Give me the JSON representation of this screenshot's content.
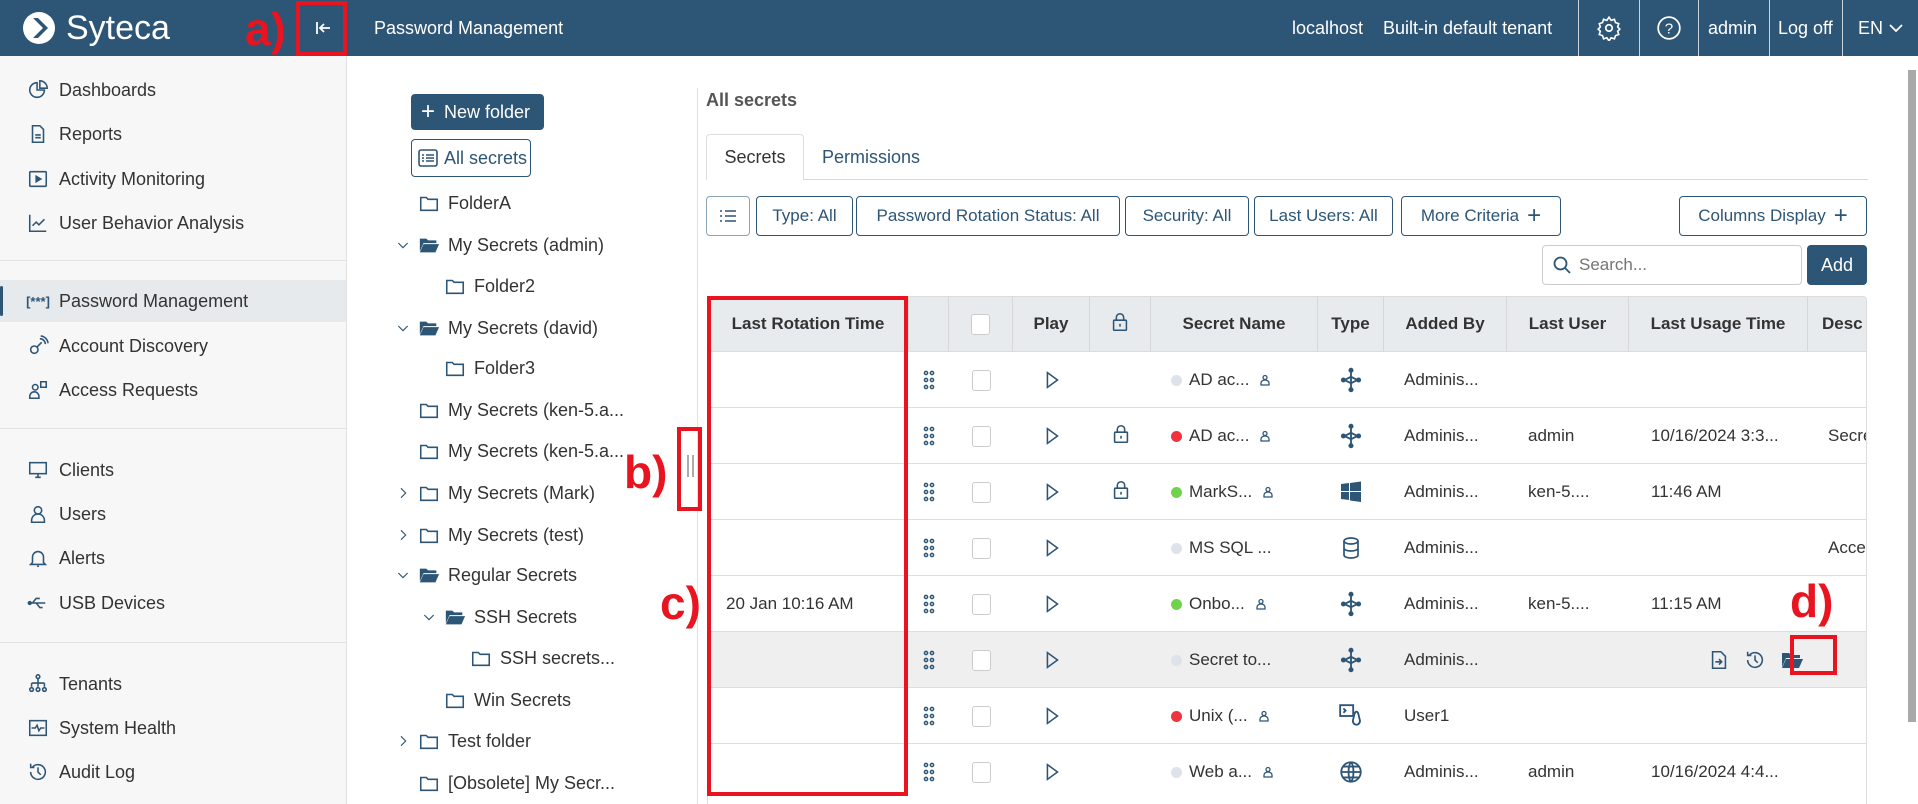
{
  "header": {
    "logo_text": "Syteca",
    "page_title": "Password Management",
    "host": "localhost",
    "tenant": "Built-in default tenant",
    "user": "admin",
    "logoff": "Log off",
    "language": "EN",
    "bg_color": "#2d5576"
  },
  "sidebar": {
    "items": [
      {
        "label": "Dashboards",
        "icon": "pie-chart-icon"
      },
      {
        "label": "Reports",
        "icon": "document-icon"
      },
      {
        "label": "Activity Monitoring",
        "icon": "play-box-icon"
      },
      {
        "label": "User Behavior Analysis",
        "icon": "chart-line-icon"
      },
      {
        "label": "Password Management",
        "icon": "password-icon",
        "active": true
      },
      {
        "label": "Account Discovery",
        "icon": "key-signal-icon"
      },
      {
        "label": "Access Requests",
        "icon": "user-question-icon"
      },
      {
        "label": "Clients",
        "icon": "monitor-icon"
      },
      {
        "label": "Users",
        "icon": "user-icon"
      },
      {
        "label": "Alerts",
        "icon": "bell-icon"
      },
      {
        "label": "USB Devices",
        "icon": "usb-icon"
      },
      {
        "label": "Tenants",
        "icon": "hierarchy-icon"
      },
      {
        "label": "System Health",
        "icon": "pulse-icon"
      },
      {
        "label": "Audit Log",
        "icon": "history-icon"
      }
    ]
  },
  "tree": {
    "new_folder": "New folder",
    "all_secrets": "All secrets",
    "items": [
      {
        "label": "FolderA",
        "level": 0,
        "chevron": "none",
        "open": false
      },
      {
        "label": "My Secrets (admin)",
        "level": 0,
        "chevron": "down",
        "open": true
      },
      {
        "label": "Folder2",
        "level": 1,
        "chevron": "none",
        "open": false
      },
      {
        "label": "My Secrets (david)",
        "level": 0,
        "chevron": "down",
        "open": true
      },
      {
        "label": "Folder3",
        "level": 1,
        "chevron": "none",
        "open": false
      },
      {
        "label": "My Secrets (ken-5.a...",
        "level": 0,
        "chevron": "none",
        "open": false
      },
      {
        "label": "My Secrets (ken-5.a...",
        "level": 0,
        "chevron": "none",
        "open": false
      },
      {
        "label": "My Secrets (Mark)",
        "level": 0,
        "chevron": "right",
        "open": false
      },
      {
        "label": "My Secrets (test)",
        "level": 0,
        "chevron": "right",
        "open": false
      },
      {
        "label": "Regular Secrets",
        "level": 0,
        "chevron": "down",
        "open": true
      },
      {
        "label": "SSH Secrets",
        "level": 1,
        "chevron": "down",
        "open": true
      },
      {
        "label": "SSH secrets...",
        "level": 2,
        "chevron": "none",
        "open": false
      },
      {
        "label": "Win Secrets",
        "level": 1,
        "chevron": "none",
        "open": false
      },
      {
        "label": "Test folder",
        "level": 0,
        "chevron": "right",
        "open": false
      },
      {
        "label": "[Obsolete] My Secr...",
        "level": 0,
        "chevron": "none",
        "open": false
      }
    ]
  },
  "main": {
    "title": "All secrets",
    "tabs": [
      {
        "label": "Secrets",
        "active": true
      },
      {
        "label": "Permissions",
        "active": false
      }
    ],
    "filters": [
      "Type: All",
      "Password Rotation Status: All",
      "Security: All",
      "Last Users: All",
      "More Criteria"
    ],
    "columns_display": "Columns Display",
    "search_placeholder": "Search...",
    "add": "Add"
  },
  "table": {
    "columns": [
      "Last Rotation Time",
      "",
      "",
      "Play",
      "",
      "Secret Name",
      "Type",
      "Added By",
      "Last User",
      "Last Usage Time",
      "Desc"
    ],
    "rows": [
      {
        "rotation": "",
        "locked": false,
        "status": "grey",
        "name": "AD ac...",
        "shared": true,
        "type": "active-directory-icon",
        "added_by": "Adminis...",
        "last_user": "",
        "last_usage": "",
        "desc": ""
      },
      {
        "rotation": "",
        "locked": true,
        "status": "red",
        "name": "AD ac...",
        "shared": true,
        "type": "active-directory-icon",
        "added_by": "Adminis...",
        "last_user": "admin",
        "last_usage": "10/16/2024 3:3...",
        "desc": "Secre"
      },
      {
        "rotation": "",
        "locked": true,
        "status": "green",
        "name": "MarkS...",
        "shared": true,
        "type": "windows-icon",
        "added_by": "Adminis...",
        "last_user": "ken-5....",
        "last_usage": "11:46 AM",
        "desc": ""
      },
      {
        "rotation": "",
        "locked": false,
        "status": "grey",
        "name": "MS SQL ...",
        "shared": false,
        "type": "database-icon",
        "added_by": "Adminis...",
        "last_user": "",
        "last_usage": "",
        "desc": "Acce"
      },
      {
        "rotation": "20 Jan 10:16 AM",
        "locked": false,
        "status": "green",
        "name": "Onbo...",
        "shared": true,
        "type": "active-directory-icon",
        "added_by": "Adminis...",
        "last_user": "ken-5....",
        "last_usage": "11:15 AM",
        "desc": ""
      },
      {
        "rotation": "",
        "locked": false,
        "status": "grey",
        "name": "Secret to...",
        "shared": false,
        "type": "active-directory-icon",
        "added_by": "Adminis...",
        "last_user": "",
        "last_usage": "",
        "desc": "",
        "hover": true,
        "actions": [
          "move-to-folder-icon",
          "history-icon",
          "open-folder-icon"
        ]
      },
      {
        "rotation": "",
        "locked": false,
        "status": "red",
        "name": "Unix (...",
        "shared": true,
        "type": "linux-terminal-icon",
        "added_by": "User1",
        "last_user": "",
        "last_usage": "",
        "desc": ""
      },
      {
        "rotation": "",
        "locked": false,
        "status": "grey",
        "name": "Web a...",
        "shared": true,
        "type": "globe-icon",
        "added_by": "Adminis...",
        "last_user": "admin",
        "last_usage": "10/16/2024 4:4...",
        "desc": ""
      }
    ]
  },
  "status_colors": {
    "grey": "#dde3e8",
    "red": "#f0333d",
    "green": "#6fd44b"
  },
  "annotations": {
    "a": "a)",
    "b": "b)",
    "c": "c)",
    "d": "d)",
    "color": "#e8141f"
  }
}
